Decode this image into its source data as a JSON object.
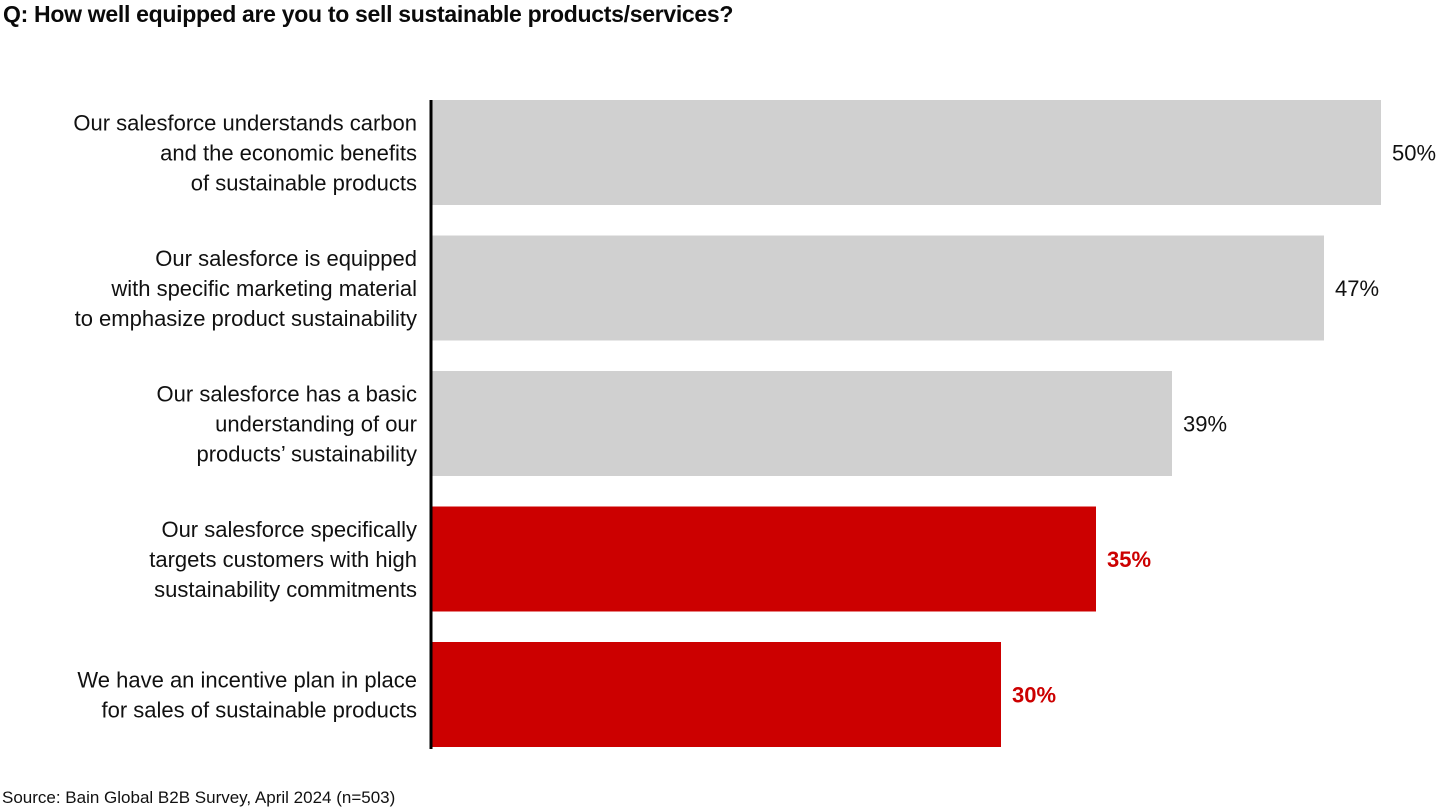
{
  "chart_data": {
    "type": "bar",
    "orientation": "horizontal",
    "title": "Q: How well equipped are you to sell sustainable products/services?",
    "source": "Source: Bain Global B2B Survey, April 2024 (n=503)",
    "xlabel": "",
    "ylabel": "",
    "xlim": [
      0,
      50
    ],
    "grid": false,
    "categories": [
      [
        "Our salesforce understands carbon",
        "and the economic benefits",
        "of sustainable products"
      ],
      [
        "Our salesforce is equipped",
        "with specific marketing material",
        "to emphasize product sustainability"
      ],
      [
        "Our salesforce has a basic",
        "understanding of our",
        "products’ sustainability"
      ],
      [
        "Our salesforce specifically",
        "targets customers with high",
        "sustainability commitments"
      ],
      [
        "We have an incentive plan in place",
        "for sales of sustainable products"
      ]
    ],
    "values": [
      50,
      47,
      39,
      35,
      30
    ],
    "value_labels": [
      "50%",
      "47%",
      "39%",
      "35%",
      "30%"
    ],
    "highlighted": [
      false,
      false,
      false,
      true,
      true
    ],
    "colors": {
      "default_bar": "#d0d0d0",
      "highlight_bar": "#cc0000",
      "default_label": "#111111",
      "highlight_label": "#cc0000",
      "axis": "#000000"
    }
  }
}
